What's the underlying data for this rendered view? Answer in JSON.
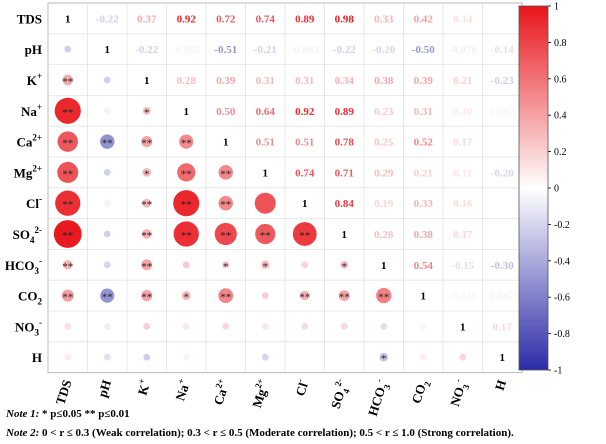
{
  "chart_data": {
    "type": "heatmap",
    "title": "",
    "variables": [
      "TDS",
      "pH",
      "K+",
      "Na+",
      "Ca2+",
      "Mg2+",
      "Cl-",
      "SO42-",
      "HCO3-",
      "CO2",
      "NO3-",
      "H"
    ],
    "variables_rich": [
      {
        "base": "TDS",
        "sup": "",
        "sub": ""
      },
      {
        "base": "pH",
        "sup": "",
        "sub": ""
      },
      {
        "base": "K",
        "sup": "+",
        "sub": ""
      },
      {
        "base": "Na",
        "sup": "+",
        "sub": ""
      },
      {
        "base": "Ca",
        "sup": "2+",
        "sub": ""
      },
      {
        "base": "Mg",
        "sup": "2+",
        "sub": ""
      },
      {
        "base": "Cl",
        "sup": "-",
        "sub": ""
      },
      {
        "base": "SO",
        "sup": "2-",
        "sub": "4"
      },
      {
        "base": "HCO",
        "sup": "-",
        "sub": "3"
      },
      {
        "base": "CO",
        "sup": "",
        "sub": "2"
      },
      {
        "base": "NO",
        "sup": "-",
        "sub": "3"
      },
      {
        "base": "H",
        "sup": "",
        "sub": ""
      }
    ],
    "upper_values": [
      [
        1,
        -0.22,
        0.37,
        0.92,
        0.72,
        0.74,
        0.89,
        0.98,
        0.33,
        0.42,
        0.14,
        0.08
      ],
      [
        -0.22,
        1,
        -0.22,
        -0.057,
        -0.51,
        -0.21,
        -0.063,
        -0.22,
        -0.2,
        -0.5,
        -0.076,
        -0.14
      ],
      [
        0.37,
        -0.22,
        1,
        0.28,
        0.39,
        0.31,
        0.31,
        0.34,
        0.38,
        0.39,
        0.21,
        -0.23
      ],
      [
        0.92,
        -0.057,
        0.28,
        1,
        0.5,
        0.64,
        0.92,
        0.89,
        0.23,
        0.31,
        0.1,
        0.052
      ],
      [
        0.72,
        -0.51,
        0.39,
        0.5,
        1,
        0.51,
        0.51,
        0.78,
        0.25,
        0.52,
        0.17,
        0.0
      ],
      [
        0.74,
        -0.21,
        0.31,
        0.64,
        0.51,
        1,
        0.74,
        0.71,
        0.29,
        0.21,
        0.11,
        -0.2
      ],
      [
        0.89,
        -0.063,
        0.31,
        0.92,
        0.51,
        0.74,
        1,
        0.84,
        0.19,
        0.33,
        0.16,
        0.0
      ],
      [
        0.98,
        -0.22,
        0.34,
        0.89,
        0.78,
        0.71,
        0.84,
        1,
        0.28,
        0.38,
        0.17,
        0.0
      ],
      [
        0.33,
        -0.2,
        0.38,
        0.23,
        0.25,
        0.29,
        0.19,
        0.28,
        1,
        0.54,
        -0.15,
        -0.3
      ],
      [
        0.42,
        -0.5,
        0.39,
        0.31,
        0.52,
        0.21,
        0.33,
        0.38,
        0.54,
        1,
        -0.041,
        0.067
      ],
      [
        0.14,
        -0.076,
        0.21,
        0.1,
        0.17,
        0.11,
        0.16,
        0.17,
        -0.15,
        -0.041,
        1,
        0.17
      ],
      [
        0.08,
        -0.14,
        -0.23,
        0.052,
        0.0,
        -0.2,
        0.0,
        0.0,
        -0.3,
        0.067,
        0.17,
        1
      ]
    ],
    "upper_labels": [
      [
        "1",
        "-0.22",
        "0.37",
        "0.92",
        "0.72",
        "0.74",
        "0.89",
        "0.98",
        "0.33",
        "0.42",
        "0.14",
        ""
      ],
      [
        "",
        "1",
        "-0.22",
        "-0.057",
        "-0.51",
        "-0.21",
        "-0.063",
        "-0.22",
        "-0.20",
        "-0.50",
        "-0.076",
        "-0.14"
      ],
      [
        "",
        "",
        "1",
        "0.28",
        "0.39",
        "0.31",
        "0.31",
        "0.34",
        "0.38",
        "0.39",
        "0.21",
        "-0.23"
      ],
      [
        "",
        "",
        "",
        "1",
        "0.50",
        "0.64",
        "0.92",
        "0.89",
        "0.23",
        "0.31",
        "0.10",
        "0.052"
      ],
      [
        "",
        "",
        "",
        "",
        "1",
        "0.51",
        "0.51",
        "0.78",
        "0.25",
        "0.52",
        "0.17",
        ""
      ],
      [
        "",
        "",
        "",
        "",
        "",
        "1",
        "0.74",
        "0.71",
        "0.29",
        "0.21",
        "0.11",
        "-0.20"
      ],
      [
        "",
        "",
        "",
        "",
        "",
        "",
        "1",
        "0.84",
        "0.19",
        "0.33",
        "0.16",
        ""
      ],
      [
        "",
        "",
        "",
        "",
        "",
        "",
        "",
        "1",
        "0.28",
        "0.38",
        "0.17",
        ""
      ],
      [
        "",
        "",
        "",
        "",
        "",
        "",
        "",
        "",
        "1",
        "0.54",
        "-0.15",
        "-0.30"
      ],
      [
        "",
        "",
        "",
        "",
        "",
        "",
        "",
        "",
        "",
        "1",
        "-0.041",
        "0.067"
      ],
      [
        "",
        "",
        "",
        "",
        "",
        "",
        "",
        "",
        "",
        "",
        "1",
        "0.17"
      ],
      [
        "",
        "",
        "",
        "",
        "",
        "",
        "",
        "",
        "",
        "",
        "",
        "1"
      ]
    ],
    "significance_lower": [
      [
        "",
        "",
        "",
        "",
        "",
        "",
        "",
        "",
        "",
        "",
        "",
        ""
      ],
      [
        "",
        "",
        "",
        "",
        "",
        "",
        "",
        "",
        "",
        "",
        "",
        ""
      ],
      [
        "**",
        "",
        "",
        "",
        "",
        "",
        "",
        "",
        "",
        "",
        "",
        ""
      ],
      [
        "**",
        "",
        "*",
        "",
        "",
        "",
        "",
        "",
        "",
        "",
        "",
        ""
      ],
      [
        "**",
        "**",
        "**",
        "**",
        "",
        "",
        "",
        "",
        "",
        "",
        "",
        ""
      ],
      [
        "**",
        "",
        "*",
        "**",
        "**",
        "",
        "",
        "",
        "",
        "",
        "",
        ""
      ],
      [
        "**",
        "",
        "**",
        "**",
        "**",
        "",
        "",
        "",
        "",
        "",
        "",
        ""
      ],
      [
        "**",
        "",
        "**",
        "**",
        "**",
        "**",
        "**",
        "",
        "",
        "",
        "",
        ""
      ],
      [
        "**",
        "",
        "**",
        "",
        "*",
        "*",
        "",
        "*",
        "",
        "",
        "",
        ""
      ],
      [
        "**",
        "**",
        "**",
        "*",
        "**",
        "",
        "**",
        "**",
        "**",
        "",
        "",
        ""
      ],
      [
        "",
        "",
        "",
        "",
        "",
        "",
        "",
        "",
        "",
        "",
        "",
        ""
      ],
      [
        "",
        "",
        "",
        "",
        "",
        "",
        "",
        "",
        "*",
        "",
        "",
        ""
      ]
    ],
    "colorbar": {
      "range": [
        -1,
        1
      ],
      "ticks": [
        "1",
        "0.8",
        "0.6",
        "0.4",
        "0.2",
        "0",
        "-0.2",
        "-0.4",
        "-0.6",
        "-0.8",
        "-1"
      ],
      "colors": {
        "positive": "#e8151b",
        "neutral": "#ffffff",
        "negative": "#2b2ba8"
      }
    }
  },
  "notes": [
    {
      "label": "Note 1:",
      "text": " * p≤0.05  ** p≤0.01"
    },
    {
      "label": "Note 2:",
      "text": " 0 < r ≤ 0.3 (Weak correlation);  0.3 < r ≤ 0.5 (Moderate correlation); 0.5 < r ≤ 1.0 (Strong correlation)."
    }
  ]
}
